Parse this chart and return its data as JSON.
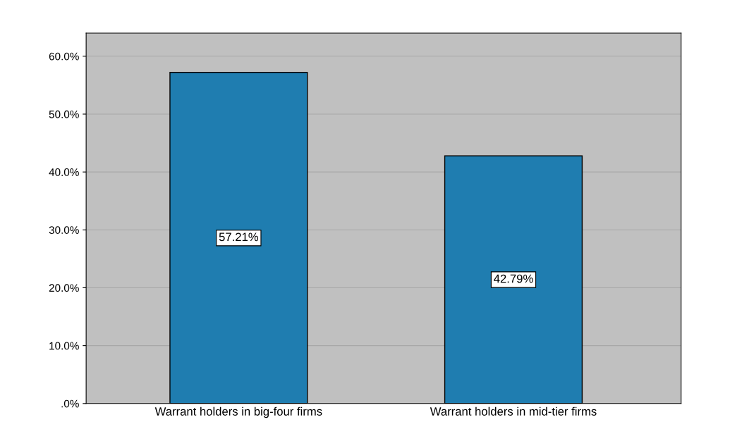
{
  "chart_data": {
    "type": "bar",
    "categories": [
      "Warrant holders in big-four firms",
      "Warrant holders in mid-tier firms"
    ],
    "values": [
      57.21,
      42.79
    ],
    "value_labels": [
      "57.21%",
      "42.79%"
    ],
    "color": "#1f7db0",
    "ylim": [
      0,
      64
    ],
    "yticks": [
      {
        "value": 0,
        "label": ".0%"
      },
      {
        "value": 10,
        "label": "10.0%"
      },
      {
        "value": 20,
        "label": "20.0%"
      },
      {
        "value": 30,
        "label": "30.0%"
      },
      {
        "value": 40,
        "label": "40.0%"
      },
      {
        "value": 50,
        "label": "50.0%"
      },
      {
        "value": 60,
        "label": "60.0%"
      }
    ],
    "grid": "y",
    "legend": false
  }
}
